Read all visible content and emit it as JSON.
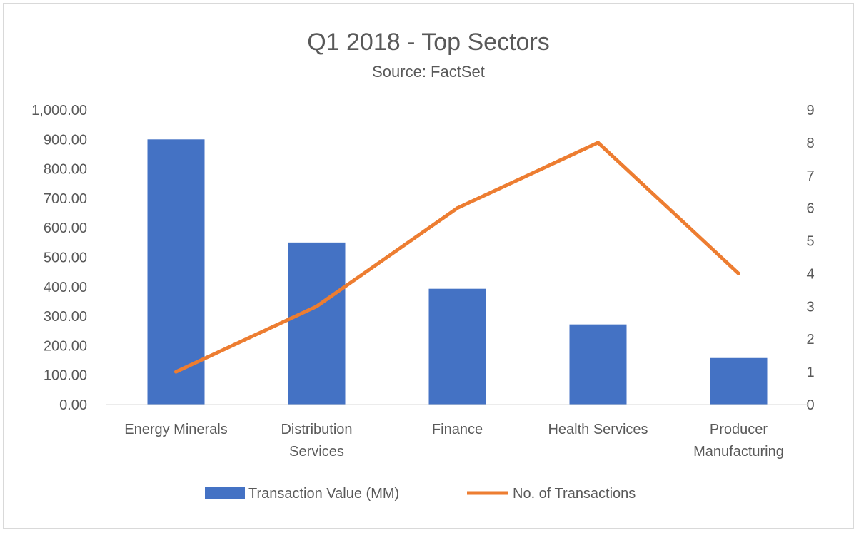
{
  "chart_data": {
    "type": "bar",
    "title": "Q1 2018 - Top Sectors",
    "subtitle": "Source: FactSet",
    "categories": [
      [
        "Energy Minerals"
      ],
      [
        "Distribution",
        "Services"
      ],
      [
        "Finance"
      ],
      [
        "Health Services"
      ],
      [
        "Producer",
        "Manufacturing"
      ]
    ],
    "series": [
      {
        "name": "Transaction Value (MM)",
        "type": "bar",
        "axis": "left",
        "color": "#4472c4",
        "values": [
          900,
          550,
          393,
          272,
          158
        ]
      },
      {
        "name": "No. of Transactions",
        "type": "line",
        "axis": "right",
        "color": "#ed7d31",
        "values": [
          1,
          3,
          6,
          8,
          4
        ]
      }
    ],
    "y_left": {
      "min": 0,
      "max": 1000,
      "step": 100,
      "tick_labels": [
        "0.00",
        "100.00",
        "200.00",
        "300.00",
        "400.00",
        "500.00",
        "600.00",
        "700.00",
        "800.00",
        "900.00",
        "1,000.00"
      ]
    },
    "y_right": {
      "min": 0,
      "max": 9,
      "step": 1,
      "tick_labels": [
        "0",
        "1",
        "2",
        "3",
        "4",
        "5",
        "6",
        "7",
        "8",
        "9"
      ]
    },
    "grid": false,
    "legend_position": "bottom"
  }
}
